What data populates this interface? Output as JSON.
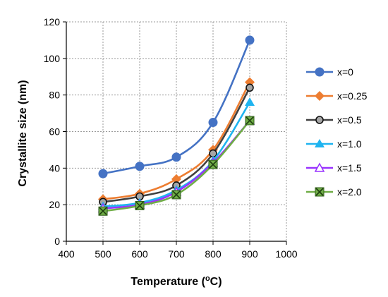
{
  "chart_data": {
    "type": "line",
    "xlabel": "Temperature (",
    "xlabel_sup": "o",
    "xlabel_tail": "C)",
    "ylabel": "Crystallite size (nm)",
    "xlim": [
      400,
      1000
    ],
    "ylim": [
      0,
      120
    ],
    "xticks": [
      400,
      500,
      600,
      700,
      800,
      900,
      1000
    ],
    "yticks": [
      0,
      20,
      40,
      60,
      80,
      100,
      120
    ],
    "grid": "dotted",
    "legend_position": "right",
    "x": [
      500,
      600,
      700,
      800,
      900
    ],
    "series": [
      {
        "name": "x=0",
        "values": [
          37,
          41,
          46,
          65,
          110
        ],
        "color": "#4472C4",
        "marker": "circle"
      },
      {
        "name": "x=0.25",
        "values": [
          23,
          26,
          34,
          50,
          87
        ],
        "color": "#ED7D31",
        "marker": "diamond"
      },
      {
        "name": "x=0.5",
        "values": [
          21.5,
          24.5,
          30.5,
          48,
          84
        ],
        "color": "#404040",
        "marker": "circle-gray"
      },
      {
        "name": "x=1.0",
        "values": [
          19,
          21,
          28,
          44,
          76
        ],
        "color": "#1FB4F0",
        "marker": "triangle"
      },
      {
        "name": "x=1.5",
        "values": [
          18,
          20,
          27,
          43,
          66
        ],
        "color": "#9933FF",
        "marker": "triangle-open"
      },
      {
        "name": "x=2.0",
        "values": [
          16.5,
          19.5,
          25.5,
          42,
          66
        ],
        "color": "#70AD47",
        "marker": "square-x"
      }
    ]
  }
}
